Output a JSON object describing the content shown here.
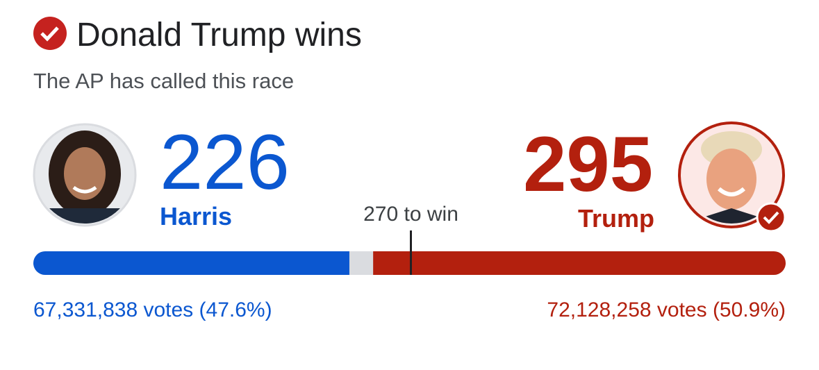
{
  "header": {
    "title": "Donald Trump wins",
    "subtitle": "The AP has called this race"
  },
  "candidates": [
    {
      "name": "Harris",
      "electoral_votes": 226,
      "color": "#0b57d0",
      "popular_votes": "67,331,838 votes (47.6%)"
    },
    {
      "name": "Trump",
      "electoral_votes": 295,
      "color": "#b3200e",
      "popular_votes": "72,128,258 votes (50.9%)"
    }
  ],
  "bar": {
    "xlim": [
      0,
      538
    ],
    "threshold": {
      "value": 270,
      "label": "270 to win"
    },
    "remainder_color": "#dadce0"
  }
}
